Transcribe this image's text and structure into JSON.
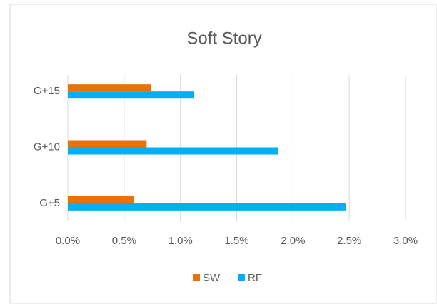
{
  "chart_data": {
    "type": "barh",
    "title": "Soft Story",
    "categories": [
      "G+5",
      "G+10",
      "G+15"
    ],
    "series": [
      {
        "name": "SW",
        "color": "#e8710a",
        "values": [
          0.59,
          0.7,
          0.74
        ]
      },
      {
        "name": "RF",
        "color": "#00b0f0",
        "values": [
          2.47,
          1.87,
          1.12
        ]
      }
    ],
    "xlim": [
      0,
      3
    ],
    "xticks": [
      {
        "value": 0,
        "label": "0.0%"
      },
      {
        "value": 0.5,
        "label": "0.5%"
      },
      {
        "value": 1,
        "label": "1.0%"
      },
      {
        "value": 1.5,
        "label": "1.5%"
      },
      {
        "value": 2,
        "label": "2.0%"
      },
      {
        "value": 2.5,
        "label": "2.5%"
      },
      {
        "value": 3,
        "label": "3.0%"
      }
    ],
    "grid": true,
    "legend": "bottom"
  }
}
